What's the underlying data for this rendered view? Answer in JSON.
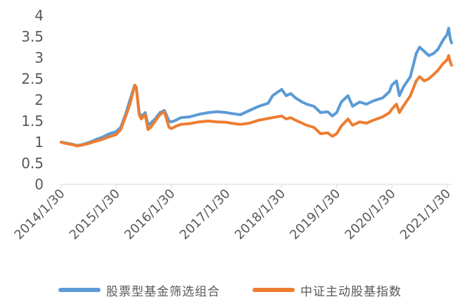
{
  "chart_data": {
    "type": "line",
    "title": "",
    "xlabel": "",
    "ylabel": "",
    "ylim": [
      0,
      4
    ],
    "grid": false,
    "legend_position": "bottom",
    "y_ticks": [
      "0",
      "0.5",
      "1",
      "1.5",
      "2",
      "2.5",
      "3",
      "3.5",
      "4"
    ],
    "x_ticks": [
      "2014/1/30",
      "2015/1/30",
      "2016/1/30",
      "2017/1/30",
      "2018/1/30",
      "2019/1/30",
      "2020/1/30",
      "2021/1/30"
    ],
    "x_range": [
      "2014/1/30",
      "2021/3/1"
    ],
    "series": [
      {
        "name": "股票型基金筛选组合",
        "color": "#5B9BD5",
        "points": [
          [
            "2014/1/30",
            1.0
          ],
          [
            "2014/3/1",
            0.98
          ],
          [
            "2014/4/15",
            0.95
          ],
          [
            "2014/5/15",
            0.92
          ],
          [
            "2014/6/15",
            0.94
          ],
          [
            "2014/8/1",
            0.99
          ],
          [
            "2014/9/15",
            1.06
          ],
          [
            "2014/11/1",
            1.12
          ],
          [
            "2014/12/15",
            1.2
          ],
          [
            "2015/1/30",
            1.25
          ],
          [
            "2015/3/1",
            1.35
          ],
          [
            "2015/4/1",
            1.65
          ],
          [
            "2015/5/1",
            2.0
          ],
          [
            "2015/6/1",
            2.35
          ],
          [
            "2015/6/12",
            2.3
          ],
          [
            "2015/7/1",
            1.7
          ],
          [
            "2015/7/15",
            1.6
          ],
          [
            "2015/8/10",
            1.7
          ],
          [
            "2015/8/28",
            1.4
          ],
          [
            "2015/9/15",
            1.45
          ],
          [
            "2015/10/15",
            1.55
          ],
          [
            "2015/11/15",
            1.7
          ],
          [
            "2015/12/15",
            1.75
          ],
          [
            "2016/1/15",
            1.5
          ],
          [
            "2016/1/30",
            1.48
          ],
          [
            "2016/3/1",
            1.52
          ],
          [
            "2016/4/1",
            1.58
          ],
          [
            "2016/6/1",
            1.6
          ],
          [
            "2016/8/1",
            1.66
          ],
          [
            "2016/10/1",
            1.7
          ],
          [
            "2016/12/1",
            1.72
          ],
          [
            "2017/1/30",
            1.7
          ],
          [
            "2017/3/1",
            1.68
          ],
          [
            "2017/5/1",
            1.65
          ],
          [
            "2017/7/1",
            1.75
          ],
          [
            "2017/9/1",
            1.85
          ],
          [
            "2017/11/1",
            1.92
          ],
          [
            "2017/12/1",
            2.1
          ],
          [
            "2018/1/30",
            2.25
          ],
          [
            "2018/3/1",
            2.1
          ],
          [
            "2018/4/1",
            2.15
          ],
          [
            "2018/5/1",
            2.05
          ],
          [
            "2018/6/15",
            1.95
          ],
          [
            "2018/7/15",
            1.9
          ],
          [
            "2018/9/1",
            1.85
          ],
          [
            "2018/10/15",
            1.7
          ],
          [
            "2018/12/1",
            1.72
          ],
          [
            "2019/1/1",
            1.62
          ],
          [
            "2019/1/30",
            1.7
          ],
          [
            "2019/3/1",
            1.95
          ],
          [
            "2019/4/15",
            2.1
          ],
          [
            "2019/5/15",
            1.85
          ],
          [
            "2019/7/1",
            1.95
          ],
          [
            "2019/8/15",
            1.9
          ],
          [
            "2019/10/1",
            1.98
          ],
          [
            "2019/12/1",
            2.05
          ],
          [
            "2020/1/15",
            2.2
          ],
          [
            "2020/1/30",
            2.35
          ],
          [
            "2020/3/1",
            2.45
          ],
          [
            "2020/3/20",
            2.1
          ],
          [
            "2020/4/15",
            2.3
          ],
          [
            "2020/6/1",
            2.55
          ],
          [
            "2020/7/10",
            3.1
          ],
          [
            "2020/8/1",
            3.25
          ],
          [
            "2020/9/1",
            3.15
          ],
          [
            "2020/10/1",
            3.05
          ],
          [
            "2020/11/1",
            3.1
          ],
          [
            "2020/12/1",
            3.2
          ],
          [
            "2021/1/1",
            3.4
          ],
          [
            "2021/1/30",
            3.55
          ],
          [
            "2021/2/10",
            3.7
          ],
          [
            "2021/2/20",
            3.45
          ],
          [
            "2021/3/1",
            3.35
          ]
        ]
      },
      {
        "name": "中证主动股基指数",
        "color": "#ED7D31",
        "points": [
          [
            "2014/1/30",
            1.0
          ],
          [
            "2014/3/1",
            0.97
          ],
          [
            "2014/4/15",
            0.94
          ],
          [
            "2014/5/15",
            0.91
          ],
          [
            "2014/6/15",
            0.93
          ],
          [
            "2014/8/1",
            0.97
          ],
          [
            "2014/9/15",
            1.02
          ],
          [
            "2014/11/1",
            1.07
          ],
          [
            "2014/12/15",
            1.13
          ],
          [
            "2015/1/30",
            1.18
          ],
          [
            "2015/3/1",
            1.3
          ],
          [
            "2015/4/1",
            1.6
          ],
          [
            "2015/5/1",
            1.9
          ],
          [
            "2015/6/1",
            2.35
          ],
          [
            "2015/6/12",
            2.28
          ],
          [
            "2015/7/1",
            1.65
          ],
          [
            "2015/7/15",
            1.55
          ],
          [
            "2015/8/10",
            1.65
          ],
          [
            "2015/8/28",
            1.3
          ],
          [
            "2015/9/15",
            1.35
          ],
          [
            "2015/10/15",
            1.5
          ],
          [
            "2015/11/15",
            1.65
          ],
          [
            "2015/12/15",
            1.72
          ],
          [
            "2016/1/15",
            1.35
          ],
          [
            "2016/1/30",
            1.32
          ],
          [
            "2016/3/1",
            1.38
          ],
          [
            "2016/4/1",
            1.42
          ],
          [
            "2016/6/1",
            1.44
          ],
          [
            "2016/8/1",
            1.48
          ],
          [
            "2016/10/1",
            1.5
          ],
          [
            "2016/12/1",
            1.48
          ],
          [
            "2017/1/30",
            1.47
          ],
          [
            "2017/3/1",
            1.45
          ],
          [
            "2017/5/1",
            1.42
          ],
          [
            "2017/7/1",
            1.45
          ],
          [
            "2017/9/1",
            1.52
          ],
          [
            "2017/11/1",
            1.56
          ],
          [
            "2017/12/1",
            1.58
          ],
          [
            "2018/1/30",
            1.62
          ],
          [
            "2018/3/1",
            1.55
          ],
          [
            "2018/4/1",
            1.58
          ],
          [
            "2018/5/1",
            1.52
          ],
          [
            "2018/6/15",
            1.45
          ],
          [
            "2018/7/15",
            1.4
          ],
          [
            "2018/9/1",
            1.35
          ],
          [
            "2018/10/15",
            1.2
          ],
          [
            "2018/12/1",
            1.22
          ],
          [
            "2019/1/1",
            1.14
          ],
          [
            "2019/1/30",
            1.2
          ],
          [
            "2019/3/1",
            1.38
          ],
          [
            "2019/4/15",
            1.55
          ],
          [
            "2019/5/15",
            1.4
          ],
          [
            "2019/7/1",
            1.48
          ],
          [
            "2019/8/15",
            1.45
          ],
          [
            "2019/10/1",
            1.52
          ],
          [
            "2019/12/1",
            1.6
          ],
          [
            "2020/1/15",
            1.7
          ],
          [
            "2020/1/30",
            1.78
          ],
          [
            "2020/3/1",
            1.9
          ],
          [
            "2020/3/20",
            1.7
          ],
          [
            "2020/4/15",
            1.85
          ],
          [
            "2020/6/1",
            2.1
          ],
          [
            "2020/7/10",
            2.45
          ],
          [
            "2020/8/1",
            2.55
          ],
          [
            "2020/9/1",
            2.45
          ],
          [
            "2020/10/1",
            2.5
          ],
          [
            "2020/11/1",
            2.6
          ],
          [
            "2020/12/1",
            2.7
          ],
          [
            "2021/1/1",
            2.85
          ],
          [
            "2021/1/30",
            2.95
          ],
          [
            "2021/2/10",
            3.05
          ],
          [
            "2021/2/20",
            2.9
          ],
          [
            "2021/3/1",
            2.82
          ]
        ]
      }
    ]
  }
}
